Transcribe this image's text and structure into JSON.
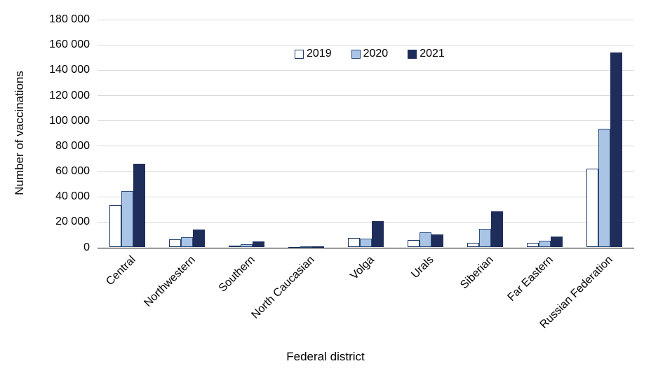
{
  "chart_data": {
    "type": "bar",
    "title": "",
    "xlabel": "Federal district",
    "ylabel": "Number of vaccinations",
    "categories": [
      "Central",
      "Northwestern",
      "Southern",
      "North Caucasian",
      "Volga",
      "Urals",
      "Siberian",
      "Far Eastern",
      "Russian Federation"
    ],
    "series": [
      {
        "name": "2019",
        "fill": "#FFFFFF",
        "border": "#1F3864",
        "values": [
          33500,
          6500,
          1500,
          300,
          7700,
          5800,
          3800,
          3500,
          62000
        ]
      },
      {
        "name": "2020",
        "fill": "#A9C4E5",
        "border": "#2E4D7B",
        "values": [
          44500,
          8000,
          2700,
          600,
          6800,
          11800,
          14700,
          5000,
          93500
        ]
      },
      {
        "name": "2021",
        "fill": "#1F2D5B",
        "border": "#1F2D5B",
        "values": [
          66000,
          14000,
          4500,
          1000,
          20500,
          10500,
          28500,
          8800,
          154000
        ]
      }
    ],
    "ylim": [
      0,
      180000
    ],
    "ytick_step": 20000,
    "grid": true,
    "legend_position": "top-center",
    "colors": {
      "grid": "#D9D9D9",
      "axis": "#000000",
      "text": "#000000"
    }
  }
}
